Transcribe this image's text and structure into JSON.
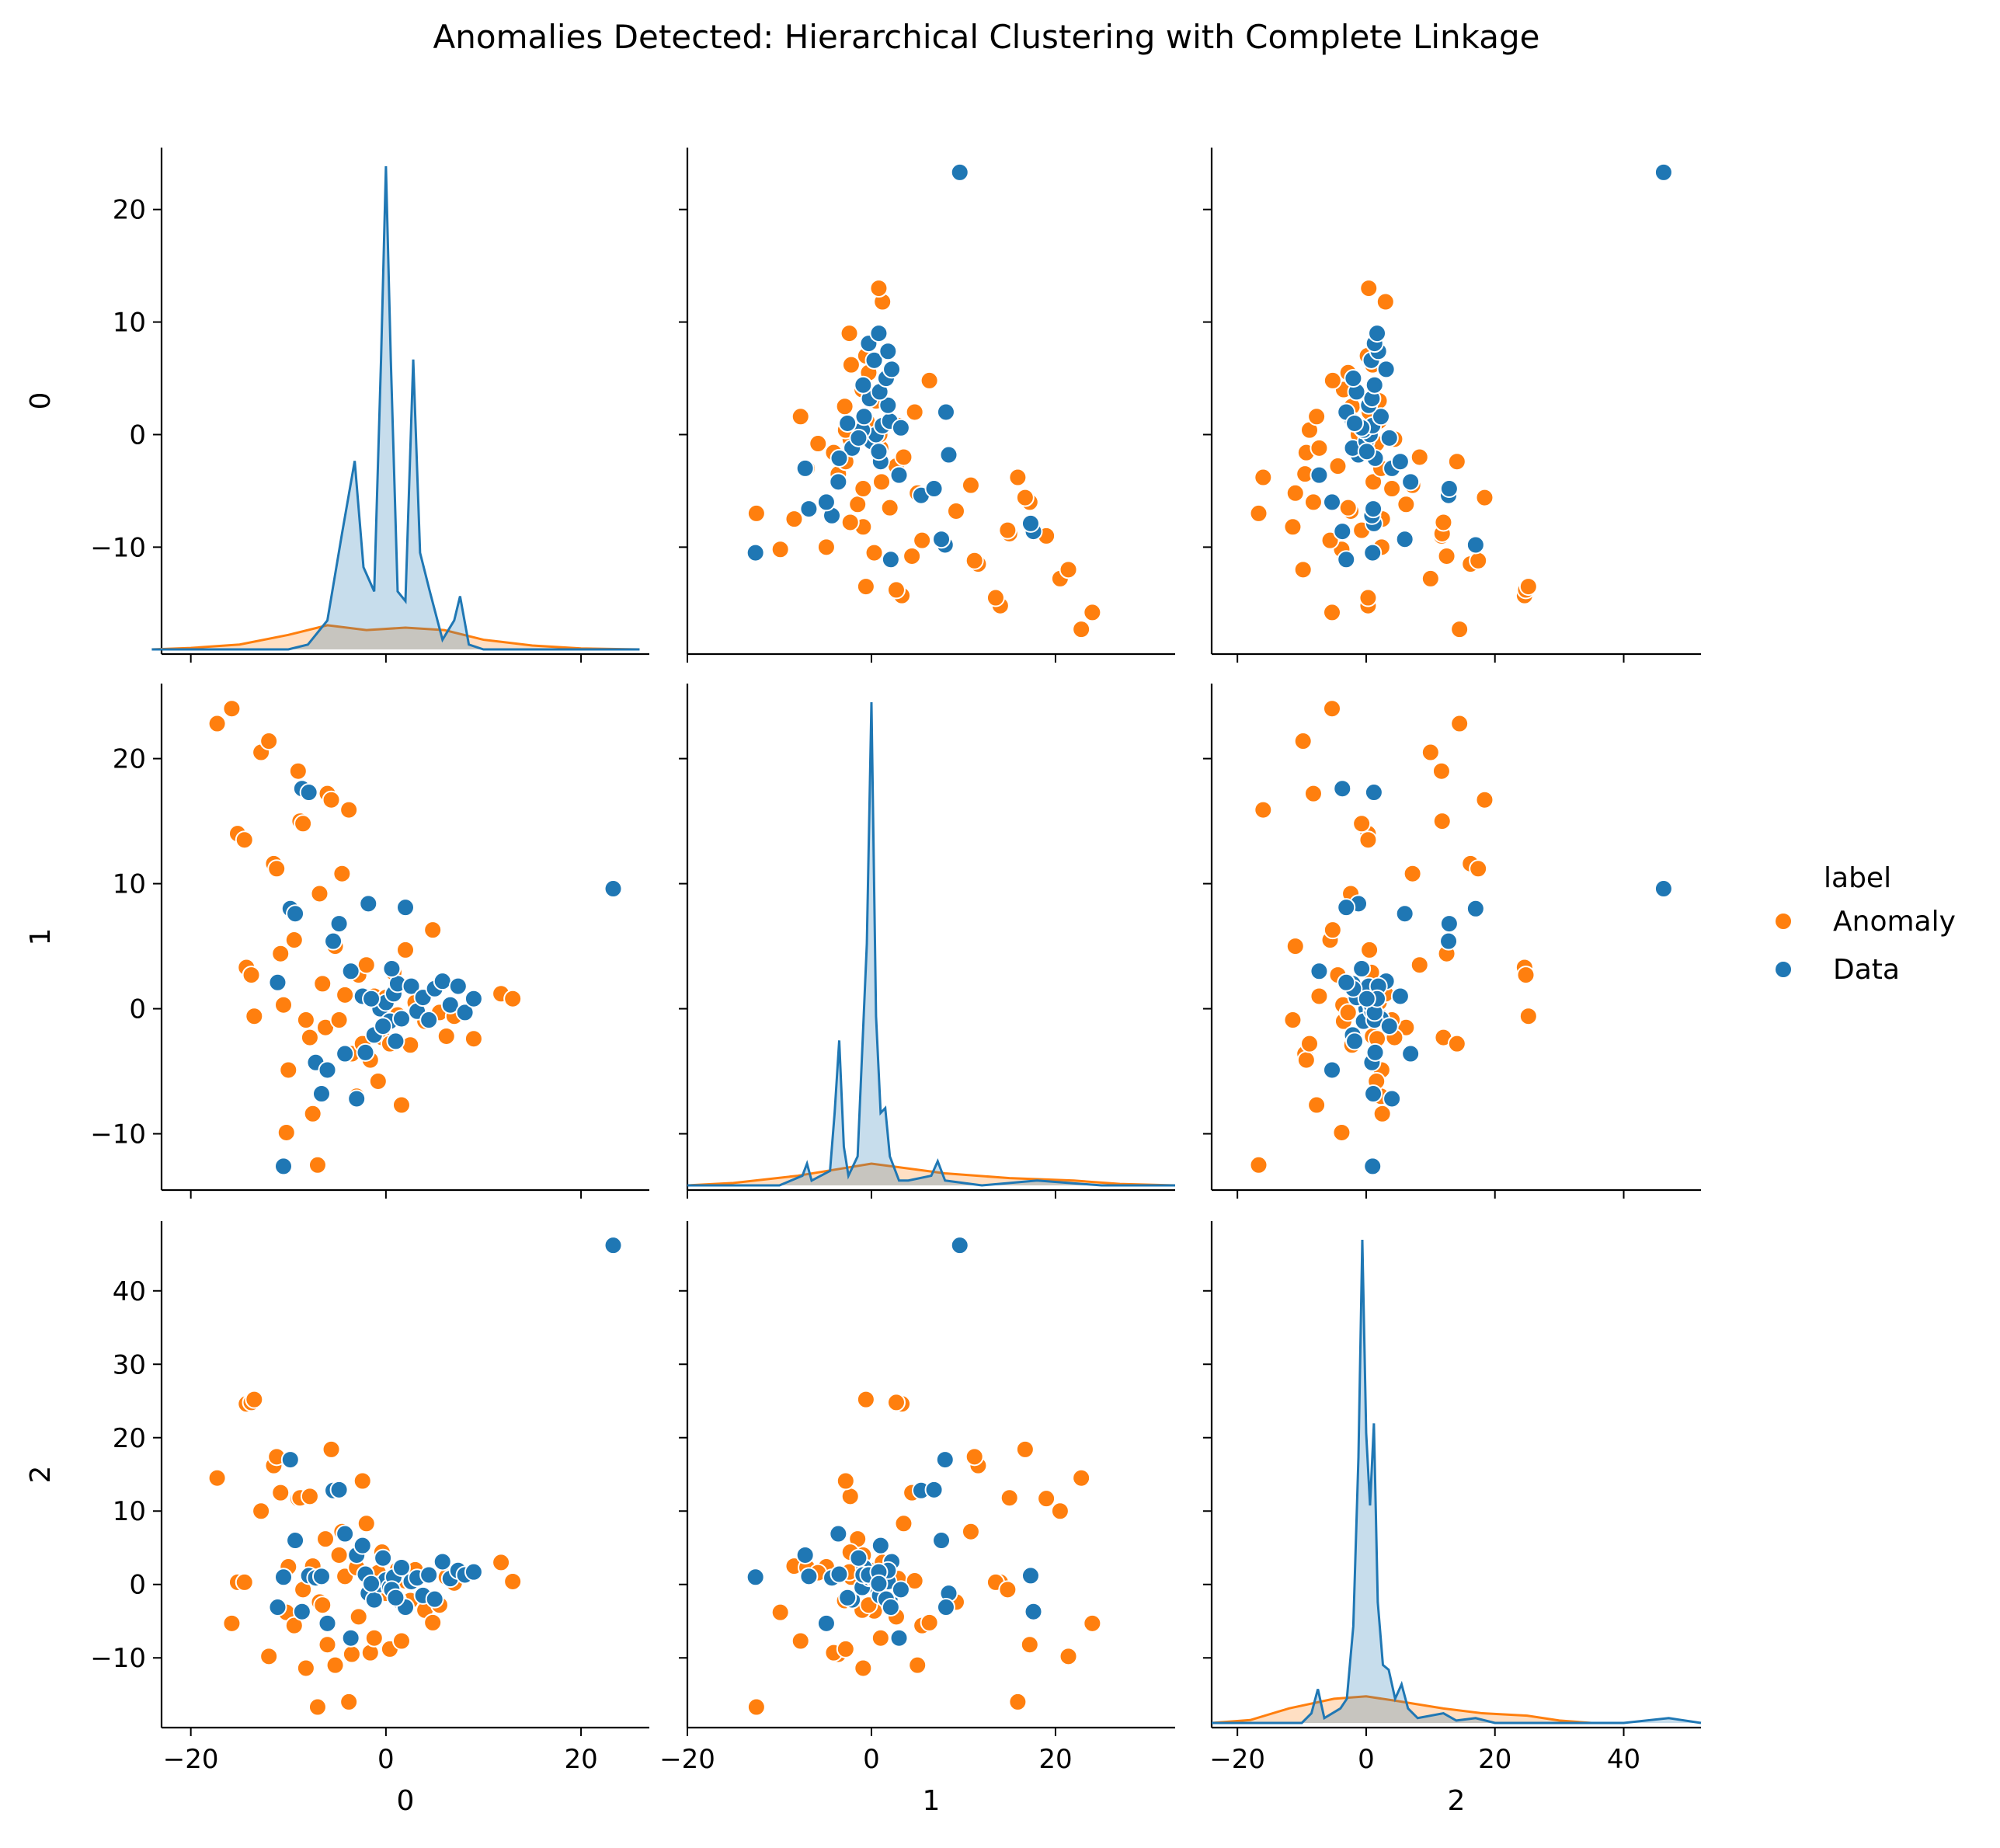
{
  "chart_data": {
    "type": "scatter",
    "title": "Anomalies Detected: Hierarchical Clustering with Complete Linkage",
    "variables": [
      "0",
      "1",
      "2"
    ],
    "axes": {
      "0": {
        "lim": [
          -24,
          26
        ],
        "ticks": [
          -20,
          0,
          20
        ],
        "tick_labels": [
          "−20",
          "0",
          "20"
        ]
      },
      "1": {
        "lim": [
          -20,
          33.5
        ],
        "ticks": [
          -10,
          0,
          10,
          20
        ],
        "tick_labels": [
          "−10",
          "0",
          "10",
          "20"
        ]
      },
      "2": {
        "lim": [
          -24,
          52.5
        ],
        "ticks": [
          -10,
          0,
          10,
          20,
          30,
          40
        ],
        "tick_labels": [
          "−10",
          "0",
          "10",
          "20",
          "30",
          "40"
        ]
      }
    },
    "kde_axes": {
      "0": {
        "lim": [
          -24,
          26
        ],
        "ticks": [
          -20,
          0,
          20
        ],
        "tick_labels": [
          "−20",
          "0",
          "20"
        ]
      },
      "1": {
        "lim": [
          -20,
          33.5
        ],
        "ticks": [
          -20,
          0,
          20
        ],
        "tick_labels": [
          "−20",
          "0",
          "20"
        ]
      },
      "2": {
        "lim": [
          -24,
          52.5
        ],
        "ticks": [
          -20,
          0,
          20,
          40
        ],
        "tick_labels": [
          "−20",
          "0",
          "20",
          "40"
        ]
      }
    },
    "row_axes": {
      "0": {
        "lim": [
          -19.5,
          25.5
        ],
        "ticks": [
          -10,
          0,
          10,
          20
        ],
        "tick_labels": [
          "−10",
          "0",
          "10",
          "20"
        ]
      },
      "1": {
        "lim": [
          -14.5,
          26
        ],
        "ticks": [
          -10,
          0,
          10,
          20
        ],
        "tick_labels": [
          "−10",
          "0",
          "10",
          "20"
        ]
      },
      "2": {
        "lim": [
          -19.5,
          49.5
        ],
        "ticks": [
          -10,
          0,
          10,
          20,
          30,
          40
        ],
        "tick_labels": [
          "−10",
          "0",
          "10",
          "20",
          "30",
          "40"
        ]
      }
    },
    "col_axes": {
      "0": {
        "lim": [
          -23,
          27
        ],
        "ticks": [
          -20,
          0,
          20
        ],
        "tick_labels": [
          "−20",
          "0",
          "20"
        ]
      },
      "1": {
        "lim": [
          -20,
          33
        ],
        "ticks": [
          -20,
          0,
          20
        ],
        "tick_labels": [
          "−20",
          "0",
          "20"
        ]
      },
      "2": {
        "lim": [
          -24,
          52
        ],
        "ticks": [
          -20,
          0,
          20,
          40
        ],
        "tick_labels": [
          "−20",
          "0",
          "20",
          "40"
        ]
      }
    },
    "grid": false,
    "legend": {
      "title": "label",
      "placement": "right"
    },
    "series": [
      {
        "name": "Anomaly",
        "color": "#ff7f0e",
        "points": [
          [
            -17.3,
            22.8,
            14.5
          ],
          [
            -15.8,
            24.0,
            -5.3
          ],
          [
            -15.2,
            14.0,
            0.3
          ],
          [
            -14.5,
            13.5,
            0.3
          ],
          [
            -14.3,
            3.3,
            24.6
          ],
          [
            -13.8,
            2.7,
            24.8
          ],
          [
            -13.5,
            -0.6,
            25.2
          ],
          [
            -12.8,
            20.5,
            10.0
          ],
          [
            -12.0,
            21.4,
            -9.8
          ],
          [
            -11.5,
            11.6,
            16.2
          ],
          [
            -11.2,
            11.2,
            17.4
          ],
          [
            -10.8,
            4.4,
            12.5
          ],
          [
            -10.5,
            0.3,
            -3.6
          ],
          [
            -10.2,
            -9.9,
            -3.8
          ],
          [
            -10.0,
            -4.9,
            2.4
          ],
          [
            -9.4,
            5.5,
            -5.6
          ],
          [
            -9.0,
            19.0,
            11.7
          ],
          [
            -8.8,
            15.0,
            11.8
          ],
          [
            -8.5,
            14.8,
            -0.7
          ],
          [
            -8.2,
            -0.9,
            -11.4
          ],
          [
            -7.8,
            -2.3,
            12.0
          ],
          [
            -7.5,
            -8.4,
            2.5
          ],
          [
            -7.0,
            -12.5,
            -16.7
          ],
          [
            -6.8,
            9.2,
            -2.4
          ],
          [
            -6.5,
            2.0,
            -2.8
          ],
          [
            -6.2,
            -1.5,
            6.2
          ],
          [
            -6.0,
            17.2,
            -8.2
          ],
          [
            -5.6,
            16.7,
            18.4
          ],
          [
            -5.2,
            5.0,
            -11.0
          ],
          [
            -4.8,
            -0.9,
            4.0
          ],
          [
            -4.5,
            10.8,
            7.2
          ],
          [
            -4.2,
            1.1,
            1.1
          ],
          [
            -3.8,
            15.9,
            -16.0
          ],
          [
            -3.5,
            -3.6,
            -9.5
          ],
          [
            -3.0,
            -7.0,
            2.3
          ],
          [
            -2.8,
            2.7,
            -4.4
          ],
          [
            -2.4,
            -2.8,
            14.1
          ],
          [
            -2.0,
            3.5,
            8.3
          ],
          [
            -1.6,
            -4.1,
            -9.3
          ],
          [
            -1.2,
            1.0,
            -7.3
          ],
          [
            -0.8,
            -5.8,
            1.6
          ],
          [
            -0.4,
            -2.3,
            4.4
          ],
          [
            0.0,
            0.9,
            -1.2
          ],
          [
            0.4,
            -2.8,
            -8.8
          ],
          [
            0.8,
            2.9,
            0.8
          ],
          [
            1.2,
            -0.5,
            2.0
          ],
          [
            1.6,
            -7.7,
            -7.7
          ],
          [
            2.0,
            4.7,
            0.5
          ],
          [
            2.5,
            -2.9,
            -2.2
          ],
          [
            3.0,
            0.5,
            2.0
          ],
          [
            4.0,
            -1.0,
            -3.5
          ],
          [
            4.8,
            6.3,
            -5.2
          ],
          [
            5.5,
            -0.3,
            -2.8
          ],
          [
            6.2,
            -2.2,
            1.0
          ],
          [
            7.0,
            -0.6,
            0.2
          ],
          [
            9.0,
            -2.4,
            1.7
          ],
          [
            11.8,
            1.2,
            3.0
          ],
          [
            13.0,
            0.8,
            0.4
          ]
        ]
      },
      {
        "name": "Data",
        "color": "#1f77b4",
        "points": [
          [
            23.3,
            9.6,
            46.2
          ],
          [
            -10.5,
            -12.6,
            1.0
          ],
          [
            -9.8,
            8.0,
            17.0
          ],
          [
            -9.3,
            7.6,
            6.0
          ],
          [
            -8.6,
            17.6,
            -3.7
          ],
          [
            -7.9,
            17.3,
            1.2
          ],
          [
            -7.2,
            -4.3,
            0.9
          ],
          [
            -6.6,
            -6.8,
            1.1
          ],
          [
            -6.0,
            -4.9,
            -5.3
          ],
          [
            -5.4,
            5.4,
            12.8
          ],
          [
            -4.8,
            6.8,
            12.9
          ],
          [
            -4.2,
            -3.6,
            6.9
          ],
          [
            -3.6,
            3.0,
            -7.3
          ],
          [
            -3.0,
            -7.2,
            4.0
          ],
          [
            -2.4,
            1.0,
            5.3
          ],
          [
            -1.8,
            8.4,
            -1.2
          ],
          [
            -1.2,
            -2.1,
            -2.1
          ],
          [
            -0.6,
            0.0,
            0.0
          ],
          [
            0.0,
            0.5,
            0.6
          ],
          [
            0.4,
            -1.0,
            -0.4
          ],
          [
            0.8,
            1.2,
            1.0
          ],
          [
            1.2,
            2.0,
            -2.1
          ],
          [
            1.6,
            -0.8,
            2.3
          ],
          [
            2.0,
            8.1,
            -3.1
          ],
          [
            2.6,
            1.8,
            0.4
          ],
          [
            3.2,
            -0.2,
            0.9
          ],
          [
            3.8,
            0.9,
            -1.5
          ],
          [
            4.4,
            -0.9,
            1.3
          ],
          [
            5.0,
            1.6,
            -2.0
          ],
          [
            5.8,
            2.2,
            3.1
          ],
          [
            6.6,
            0.3,
            0.8
          ],
          [
            7.4,
            1.8,
            1.9
          ],
          [
            8.1,
            -0.3,
            1.3
          ],
          [
            9.0,
            0.8,
            1.7
          ],
          [
            -11.1,
            2.1,
            -3.1
          ],
          [
            -2.1,
            -3.5,
            1.4
          ],
          [
            -0.3,
            -1.4,
            3.6
          ],
          [
            0.6,
            3.2,
            -0.7
          ],
          [
            1.0,
            -2.6,
            -1.8
          ],
          [
            -1.5,
            0.8,
            0.1
          ]
        ]
      }
    ],
    "kde": [
      {
        "name": "Anomaly",
        "panels": {
          "0": [
            [
              -24,
              0
            ],
            [
              -20,
              0.003
            ],
            [
              -15,
              0.01
            ],
            [
              -10,
              0.03
            ],
            [
              -6,
              0.05
            ],
            [
              -2,
              0.04
            ],
            [
              2,
              0.045
            ],
            [
              6,
              0.04
            ],
            [
              10,
              0.02
            ],
            [
              15,
              0.008
            ],
            [
              20,
              0.002
            ],
            [
              26,
              0
            ]
          ],
          "1": [
            [
              -20,
              0
            ],
            [
              -15,
              0.005
            ],
            [
              -8,
              0.02
            ],
            [
              0,
              0.045
            ],
            [
              8,
              0.025
            ],
            [
              15,
              0.015
            ],
            [
              22,
              0.01
            ],
            [
              27,
              0.003
            ],
            [
              33,
              0
            ]
          ],
          "2": [
            [
              -24,
              0
            ],
            [
              -18,
              0.006
            ],
            [
              -12,
              0.03
            ],
            [
              -5,
              0.05
            ],
            [
              0,
              0.055
            ],
            [
              5,
              0.045
            ],
            [
              12,
              0.03
            ],
            [
              18,
              0.02
            ],
            [
              25,
              0.015
            ],
            [
              30,
              0.005
            ],
            [
              35,
              0
            ]
          ]
        }
      },
      {
        "name": "Data",
        "panels": {
          "0": [
            [
              -24,
              0
            ],
            [
              -10,
              0
            ],
            [
              -8,
              0.01
            ],
            [
              -6,
              0.06
            ],
            [
              -4.5,
              0.24
            ],
            [
              -3.2,
              0.39
            ],
            [
              -2.3,
              0.17
            ],
            [
              -1.2,
              0.12
            ],
            [
              -0.5,
              0.6
            ],
            [
              0,
              1.0
            ],
            [
              0.5,
              0.6
            ],
            [
              1.2,
              0.12
            ],
            [
              2.0,
              0.1
            ],
            [
              2.8,
              0.6
            ],
            [
              3.5,
              0.2
            ],
            [
              4.5,
              0.12
            ],
            [
              5.8,
              0.02
            ],
            [
              7.0,
              0.06
            ],
            [
              7.6,
              0.11
            ],
            [
              8.5,
              0.01
            ],
            [
              10,
              0
            ],
            [
              20,
              0
            ],
            [
              26,
              0
            ]
          ],
          "1": [
            [
              -20,
              0
            ],
            [
              -10,
              0
            ],
            [
              -7.5,
              0.02
            ],
            [
              -7,
              0.045
            ],
            [
              -6.5,
              0.01
            ],
            [
              -4.5,
              0.03
            ],
            [
              -4,
              0.15
            ],
            [
              -3.5,
              0.3
            ],
            [
              -3.0,
              0.08
            ],
            [
              -2.5,
              0.02
            ],
            [
              -1.5,
              0.06
            ],
            [
              -0.5,
              0.5
            ],
            [
              0,
              1.0
            ],
            [
              0.5,
              0.35
            ],
            [
              1,
              0.15
            ],
            [
              1.5,
              0.16
            ],
            [
              2,
              0.06
            ],
            [
              3,
              0.01
            ],
            [
              4,
              0.01
            ],
            [
              6.5,
              0.02
            ],
            [
              7.2,
              0.05
            ],
            [
              8,
              0.01
            ],
            [
              12,
              0
            ],
            [
              18,
              0.01
            ],
            [
              25,
              0
            ],
            [
              33,
              0
            ]
          ],
          "2": [
            [
              -24,
              0
            ],
            [
              -10,
              0
            ],
            [
              -8.5,
              0.02
            ],
            [
              -7.5,
              0.07
            ],
            [
              -6.5,
              0.01
            ],
            [
              -4,
              0.03
            ],
            [
              -3,
              0.05
            ],
            [
              -2,
              0.2
            ],
            [
              -1.2,
              0.55
            ],
            [
              -0.6,
              1.0
            ],
            [
              0,
              0.6
            ],
            [
              0.6,
              0.45
            ],
            [
              1.2,
              0.62
            ],
            [
              1.8,
              0.25
            ],
            [
              2.6,
              0.12
            ],
            [
              3.5,
              0.11
            ],
            [
              4.5,
              0.05
            ],
            [
              5.5,
              0.08
            ],
            [
              6.5,
              0.03
            ],
            [
              8,
              0.01
            ],
            [
              12,
              0.02
            ],
            [
              14,
              0.005
            ],
            [
              17,
              0.01
            ],
            [
              20,
              0
            ],
            [
              40,
              0
            ],
            [
              47,
              0.01
            ],
            [
              52,
              0
            ]
          ]
        }
      }
    ]
  }
}
